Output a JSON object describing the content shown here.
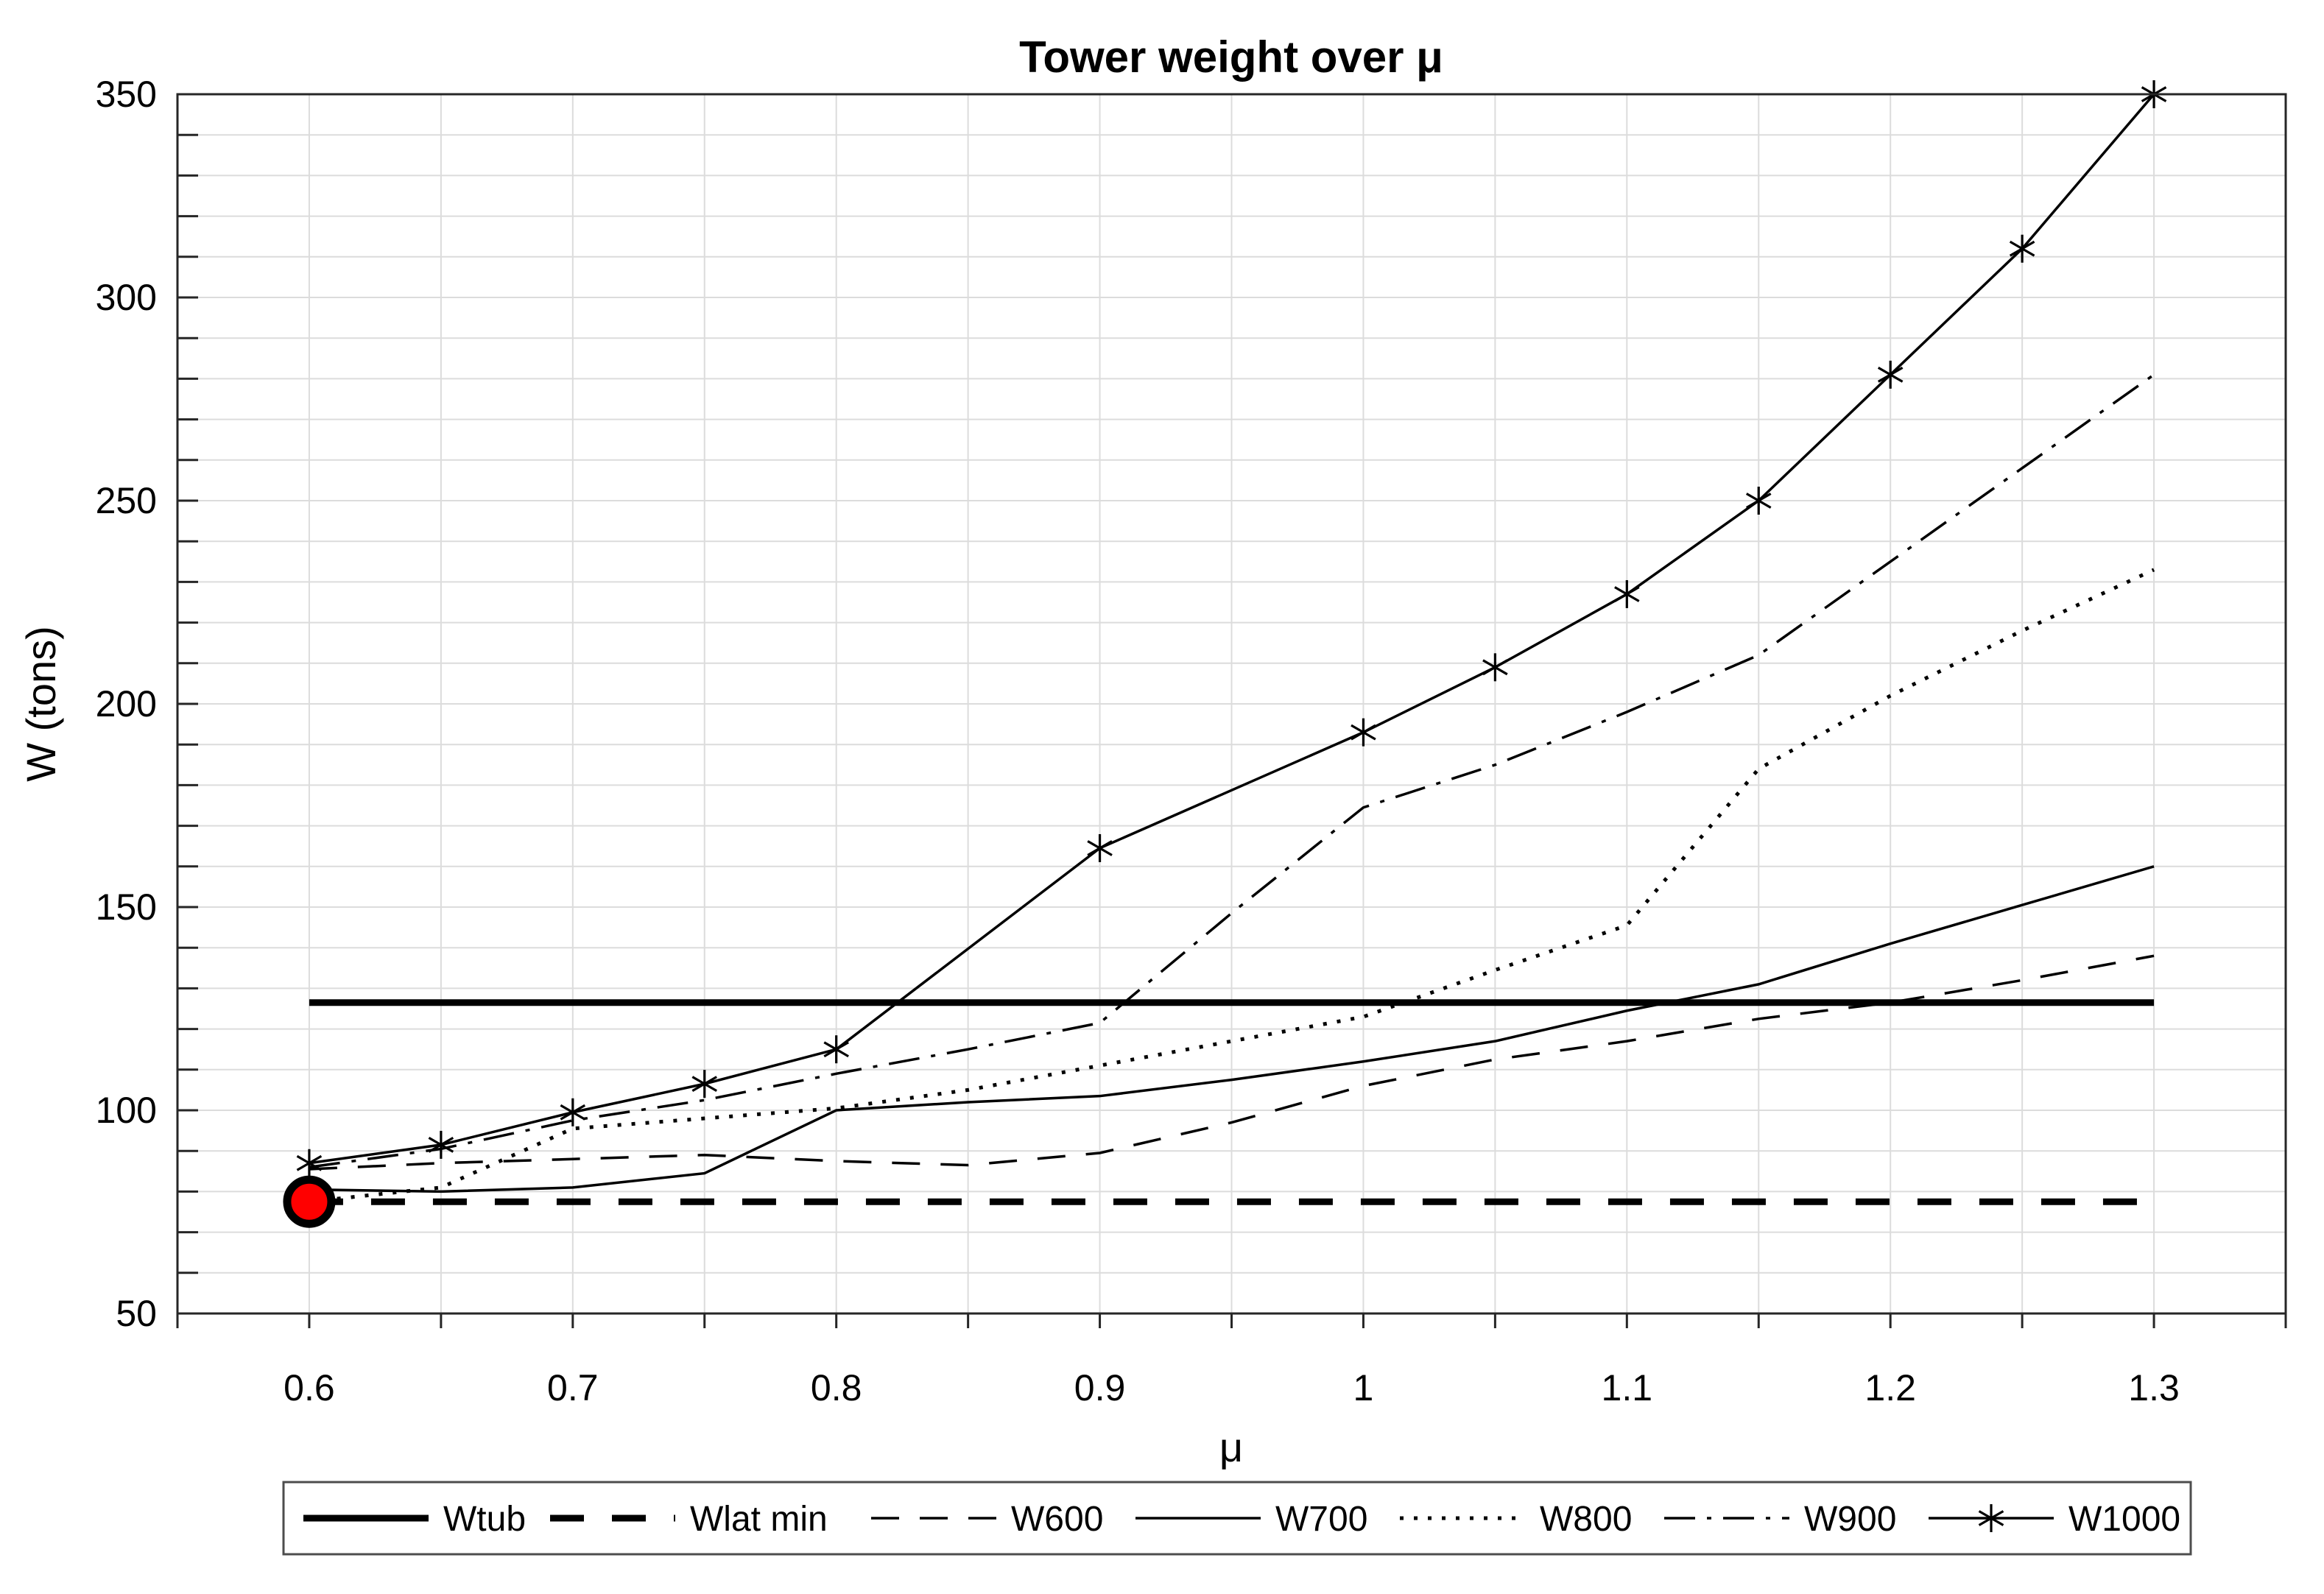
{
  "figure": {
    "background": "#ffffff",
    "frame_color": "#262626",
    "grid_color": "#dcdcdc",
    "line_color": "#000000"
  },
  "chart_data": {
    "type": "line",
    "title": "Tower weight over μ",
    "xlabel": "μ",
    "ylabel": "W (tons)",
    "xlim": [
      0.55,
      1.35
    ],
    "ylim": [
      50,
      350
    ],
    "grid": "on",
    "x_minor_step": 0.05,
    "y_minor_step": 10,
    "x_ticks": [
      0.6,
      0.7,
      0.8,
      0.9,
      1,
      1.1,
      1.2,
      1.3
    ],
    "x_tick_labels": [
      "0.6",
      "0.7",
      "0.8",
      "0.9",
      "1",
      "1.1",
      "1.2",
      "1.3"
    ],
    "y_ticks": [
      50,
      100,
      150,
      200,
      250,
      300,
      350
    ],
    "y_tick_labels": [
      "50",
      "100",
      "150",
      "200",
      "250",
      "300",
      "350"
    ],
    "legend_position": "south-outside",
    "series": [
      {
        "name": "Wtub",
        "style": "solid-thick",
        "x": [
          0.6,
          1.3
        ],
        "y": [
          126.5,
          126.5
        ]
      },
      {
        "name": "Wlat min",
        "style": "dashed-thick",
        "x": [
          0.6,
          1.3
        ],
        "y": [
          77.5,
          77.5
        ]
      },
      {
        "name": "W600",
        "style": "dashed",
        "x": [
          0.6,
          0.65,
          0.7,
          0.75,
          0.8,
          0.85,
          0.9,
          0.95,
          1.0,
          1.05,
          1.1,
          1.15,
          1.2,
          1.25,
          1.3
        ],
        "y": [
          85.5,
          87,
          88,
          89,
          87.5,
          86.5,
          89.5,
          97,
          106,
          112.5,
          117,
          122.5,
          126.5,
          132,
          138
        ]
      },
      {
        "name": "W700",
        "style": "solid",
        "x": [
          0.6,
          0.65,
          0.7,
          0.75,
          0.8,
          0.85,
          0.9,
          0.95,
          1.0,
          1.05,
          1.1,
          1.15,
          1.2,
          1.25,
          1.3
        ],
        "y": [
          80.5,
          80,
          81,
          84.5,
          100,
          102,
          103.5,
          107.5,
          112,
          117,
          124.5,
          131,
          141,
          150.5,
          160
        ]
      },
      {
        "name": "W800",
        "style": "dotted",
        "x": [
          0.6,
          0.65,
          0.7,
          0.75,
          0.8,
          0.85,
          0.9,
          0.95,
          1.0,
          1.05,
          1.1,
          1.15,
          1.2,
          1.25,
          1.3
        ],
        "y": [
          77.5,
          81,
          95.5,
          98,
          100.5,
          105,
          111,
          117,
          123,
          134.5,
          145.5,
          184,
          202,
          218,
          233
        ]
      },
      {
        "name": "W900",
        "style": "dashdot",
        "x": [
          0.6,
          0.65,
          0.7,
          0.75,
          0.8,
          0.85,
          0.9,
          0.95,
          1.0,
          1.05,
          1.1,
          1.15,
          1.2,
          1.25,
          1.3
        ],
        "y": [
          86,
          90.5,
          97.5,
          102.5,
          109,
          115,
          121.5,
          148.5,
          174.5,
          185,
          198,
          212,
          235,
          258,
          281
        ]
      },
      {
        "name": "W1000",
        "style": "solid-asterisk",
        "x": [
          0.6,
          0.65,
          0.7,
          0.75,
          0.8,
          0.9,
          1.0,
          1.05,
          1.1,
          1.15,
          1.2,
          1.25,
          1.3
        ],
        "y": [
          87,
          91.5,
          99.5,
          106.5,
          115,
          164.5,
          193,
          209,
          227,
          250,
          281,
          312,
          350
        ]
      }
    ],
    "highlight_point": {
      "x": 0.6,
      "y": 77.5,
      "marker": "red-circle",
      "fill": "#ff0000",
      "edge": "#000000"
    }
  }
}
